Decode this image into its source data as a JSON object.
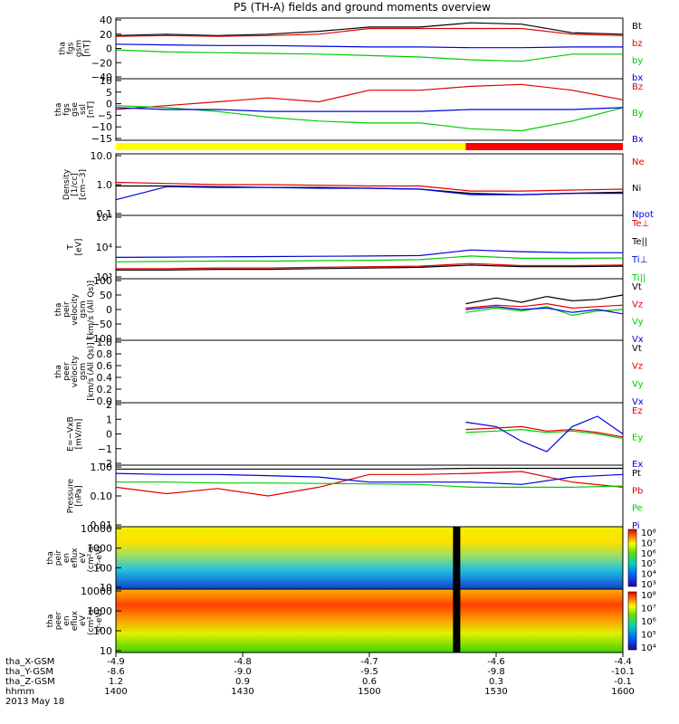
{
  "title": "P5 (TH-A) fields and ground moments overview",
  "colors": {
    "black": "#000000",
    "red": "#e00000",
    "green": "#00cc00",
    "blue": "#0000e0",
    "yellow": "#ffff00",
    "bar_red": "#ff0000"
  },
  "chart_data": [
    {
      "type": "line",
      "panel": "fgs",
      "ylabel": [
        "tha",
        "fgs",
        "gsm",
        "[nT]"
      ],
      "yticks": [
        "40",
        "20",
        "0",
        "−20",
        "−40"
      ],
      "ylim": [
        -40,
        40
      ],
      "series": [
        {
          "name": "Bt",
          "color": "black",
          "x": [
            0,
            0.1,
            0.2,
            0.3,
            0.4,
            0.5,
            0.6,
            0.7,
            0.8,
            0.9,
            1.0
          ],
          "y": [
            18,
            20,
            18,
            20,
            24,
            30,
            30,
            36,
            34,
            22,
            20
          ]
        },
        {
          "name": "bz",
          "color": "red",
          "x": [
            0,
            0.1,
            0.2,
            0.3,
            0.4,
            0.5,
            0.6,
            0.7,
            0.8,
            0.9,
            1.0
          ],
          "y": [
            17,
            18,
            17,
            18,
            20,
            28,
            28,
            28,
            28,
            20,
            18
          ]
        },
        {
          "name": "by",
          "color": "green",
          "x": [
            0,
            0.1,
            0.2,
            0.3,
            0.4,
            0.5,
            0.6,
            0.7,
            0.8,
            0.9,
            1.0
          ],
          "y": [
            -2,
            -5,
            -6,
            -7,
            -8,
            -10,
            -12,
            -16,
            -18,
            -8,
            -8
          ]
        },
        {
          "name": "bx",
          "color": "blue",
          "x": [
            0,
            0.1,
            0.2,
            0.3,
            0.4,
            0.5,
            0.6,
            0.7,
            0.8,
            0.9,
            1.0
          ],
          "y": [
            6,
            5,
            4,
            4,
            3,
            2,
            2,
            1,
            1,
            2,
            2
          ]
        }
      ]
    },
    {
      "type": "line",
      "panel": "fgs-ssl",
      "ylabel": [
        "tha",
        "fgs",
        "gse",
        "ssl",
        "[nT]"
      ],
      "yticks": [
        "10",
        "5",
        "0",
        "−5",
        "−10",
        "−15"
      ],
      "ylim": [
        -17,
        13
      ],
      "series": [
        {
          "name": "Bz",
          "color": "red",
          "x": [
            0,
            0.1,
            0.2,
            0.3,
            0.4,
            0.5,
            0.6,
            0.7,
            0.8,
            0.9,
            1.0
          ],
          "y": [
            -2,
            0,
            2,
            4,
            2,
            8,
            8,
            10,
            11,
            8,
            3
          ]
        },
        {
          "name": "By",
          "color": "green",
          "x": [
            0,
            0.1,
            0.2,
            0.3,
            0.4,
            0.5,
            0.6,
            0.7,
            0.8,
            0.9,
            1.0
          ],
          "y": [
            0,
            -1,
            -3,
            -6,
            -8,
            -9,
            -9,
            -12,
            -13,
            -8,
            -1
          ]
        },
        {
          "name": "Bx",
          "color": "blue",
          "x": [
            0,
            0.1,
            0.2,
            0.3,
            0.4,
            0.5,
            0.6,
            0.7,
            0.8,
            0.9,
            1.0
          ],
          "y": [
            -1,
            -2,
            -2,
            -3,
            -3,
            -3,
            -3,
            -2,
            -2,
            -2,
            -1
          ]
        }
      ]
    },
    {
      "type": "line",
      "panel": "density",
      "log_scale": true,
      "ylabel": [
        "Density",
        "[1/cc]",
        "[cm−3]"
      ],
      "yticks": [
        "10.0",
        "1.0",
        "0.1"
      ],
      "ylim": [
        0.1,
        10
      ],
      "series": [
        {
          "name": "Ne",
          "color": "red",
          "x": [
            0,
            0.1,
            0.2,
            0.3,
            0.4,
            0.5,
            0.6,
            0.7,
            0.8,
            0.9,
            1.0
          ],
          "y": [
            1.2,
            1.1,
            1.0,
            1.0,
            0.95,
            0.9,
            0.9,
            0.6,
            0.6,
            0.65,
            0.7
          ]
        },
        {
          "name": "Ni",
          "color": "black",
          "x": [
            0,
            0.1,
            0.2,
            0.3,
            0.4,
            0.5,
            0.6,
            0.7,
            0.8,
            0.9,
            1.0
          ],
          "y": [
            0.9,
            0.9,
            0.85,
            0.8,
            0.8,
            0.75,
            0.7,
            0.5,
            0.45,
            0.5,
            0.55
          ]
        },
        {
          "name": "Npot",
          "color": "blue",
          "x": [
            0,
            0.1,
            0.2,
            0.3,
            0.4,
            0.5,
            0.6,
            0.7,
            0.8,
            0.9,
            1.0
          ],
          "y": [
            0.3,
            0.85,
            0.8,
            0.8,
            0.75,
            0.75,
            0.7,
            0.45,
            0.45,
            0.5,
            0.5
          ]
        }
      ]
    },
    {
      "type": "line",
      "panel": "temperature",
      "log_scale": true,
      "ylabel": [
        "T",
        "[eV]"
      ],
      "yticks": [
        "10⁵",
        "10⁴",
        "10³"
      ],
      "ylim": [
        1000,
        100000
      ],
      "series": [
        {
          "name": "Te⊥",
          "color": "red",
          "x": [
            0,
            0.1,
            0.2,
            0.3,
            0.4,
            0.5,
            0.6,
            0.7,
            0.8,
            0.9,
            1.0
          ],
          "y": [
            1900,
            1900,
            2000,
            2000,
            2100,
            2200,
            2300,
            2800,
            2400,
            2400,
            2500
          ]
        },
        {
          "name": "Te||",
          "color": "black",
          "x": [
            0,
            0.1,
            0.2,
            0.3,
            0.4,
            0.5,
            0.6,
            0.7,
            0.8,
            0.9,
            1.0
          ],
          "y": [
            1700,
            1700,
            1800,
            1800,
            1900,
            2000,
            2100,
            2500,
            2200,
            2200,
            2300
          ]
        },
        {
          "name": "Ti⊥",
          "color": "blue",
          "x": [
            0,
            0.1,
            0.2,
            0.3,
            0.4,
            0.5,
            0.6,
            0.7,
            0.8,
            0.9,
            1.0
          ],
          "y": [
            4500,
            4600,
            4700,
            4800,
            4900,
            5000,
            5200,
            8000,
            7000,
            6500,
            6500
          ]
        },
        {
          "name": "Ti||",
          "color": "green",
          "x": [
            0,
            0.1,
            0.2,
            0.3,
            0.4,
            0.5,
            0.6,
            0.7,
            0.8,
            0.9,
            1.0
          ],
          "y": [
            3200,
            3300,
            3400,
            3400,
            3500,
            3600,
            3800,
            5000,
            4200,
            4200,
            4300
          ]
        }
      ]
    },
    {
      "type": "line",
      "panel": "peir-velocity",
      "ylabel": [
        "tha",
        "peir",
        "velocity",
        "gsm",
        "[km/s (All Qs)]"
      ],
      "yticks": [
        "100",
        "50",
        "0",
        "−50",
        "−100"
      ],
      "ylim": [
        -100,
        100
      ],
      "series": [
        {
          "name": "Vt",
          "color": "black",
          "x": [
            0.69,
            0.75,
            0.8,
            0.85,
            0.9,
            0.95,
            1.0
          ],
          "y": [
            20,
            40,
            25,
            45,
            30,
            35,
            50
          ]
        },
        {
          "name": "Vz",
          "color": "red",
          "x": [
            0.69,
            0.75,
            0.8,
            0.85,
            0.9,
            0.95,
            1.0
          ],
          "y": [
            5,
            15,
            10,
            20,
            5,
            10,
            15
          ]
        },
        {
          "name": "Vy",
          "color": "green",
          "x": [
            0.69,
            0.75,
            0.8,
            0.85,
            0.9,
            0.95,
            1.0
          ],
          "y": [
            -10,
            5,
            -5,
            10,
            -20,
            -5,
            0
          ]
        },
        {
          "name": "Vx",
          "color": "blue",
          "x": [
            0.69,
            0.75,
            0.8,
            0.85,
            0.9,
            0.95,
            1.0
          ],
          "y": [
            0,
            10,
            0,
            5,
            -10,
            0,
            -15
          ]
        }
      ]
    },
    {
      "type": "line",
      "panel": "peer-velocity",
      "ylabel": [
        "tha",
        "peer",
        "velocity",
        "gsm",
        "[km/s (All Qs)]"
      ],
      "yticks": [
        "1.0",
        "0.8",
        "0.6",
        "0.4",
        "0.2",
        "0.0"
      ],
      "ylim": [
        0,
        1
      ],
      "series": [
        {
          "name": "Vt",
          "color": "black",
          "x": [],
          "y": []
        },
        {
          "name": "Vz",
          "color": "red",
          "x": [],
          "y": []
        },
        {
          "name": "Vy",
          "color": "green",
          "x": [],
          "y": []
        },
        {
          "name": "Vx",
          "color": "blue",
          "x": [],
          "y": []
        }
      ]
    },
    {
      "type": "line",
      "panel": "efield",
      "ylabel": [
        "E=−VxB",
        "[mV/m]"
      ],
      "yticks": [
        "2",
        "1",
        "0",
        "−1",
        "−2"
      ],
      "ylim": [
        -2,
        2
      ],
      "series": [
        {
          "name": "Ez",
          "color": "red",
          "x": [
            0.69,
            0.75,
            0.8,
            0.85,
            0.9,
            0.95,
            1.0
          ],
          "y": [
            0.3,
            0.4,
            0.5,
            0.2,
            0.3,
            0.1,
            -0.2
          ]
        },
        {
          "name": "Ey",
          "color": "green",
          "x": [
            0.69,
            0.75,
            0.8,
            0.85,
            0.9,
            0.95,
            1.0
          ],
          "y": [
            0.1,
            0.2,
            0.3,
            0.1,
            0.2,
            0.0,
            -0.3
          ]
        },
        {
          "name": "Ex",
          "color": "blue",
          "x": [
            0.69,
            0.75,
            0.8,
            0.85,
            0.9,
            0.95,
            1.0
          ],
          "y": [
            0.8,
            0.5,
            -0.5,
            -1.2,
            0.5,
            1.2,
            0.0
          ]
        }
      ]
    },
    {
      "type": "line",
      "panel": "pressure",
      "log_scale": true,
      "ylabel": [
        "Pressure",
        "[nPa]"
      ],
      "yticks": [
        "1.00",
        "0.10",
        "0.01"
      ],
      "ylim": [
        0.01,
        1
      ],
      "series": [
        {
          "name": "Pt",
          "color": "black",
          "x": [
            0,
            0.1,
            0.2,
            0.3,
            0.4,
            0.5,
            0.6,
            0.7,
            0.8,
            0.9,
            1.0
          ],
          "y": [
            0.85,
            0.85,
            0.85,
            0.85,
            0.85,
            0.85,
            0.85,
            0.9,
            0.9,
            0.9,
            0.9
          ]
        },
        {
          "name": "Pb",
          "color": "red",
          "x": [
            0,
            0.1,
            0.2,
            0.3,
            0.4,
            0.5,
            0.6,
            0.7,
            0.8,
            0.9,
            1.0
          ],
          "y": [
            0.2,
            0.12,
            0.18,
            0.1,
            0.2,
            0.55,
            0.55,
            0.6,
            0.7,
            0.3,
            0.2
          ]
        },
        {
          "name": "Pe",
          "color": "green",
          "x": [
            0,
            0.1,
            0.2,
            0.3,
            0.4,
            0.5,
            0.6,
            0.7,
            0.8,
            0.9,
            1.0
          ],
          "y": [
            0.3,
            0.3,
            0.28,
            0.28,
            0.27,
            0.26,
            0.25,
            0.2,
            0.2,
            0.2,
            0.22
          ]
        },
        {
          "name": "Pi",
          "color": "blue",
          "x": [
            0,
            0.1,
            0.2,
            0.3,
            0.4,
            0.5,
            0.6,
            0.7,
            0.8,
            0.9,
            1.0
          ],
          "y": [
            0.6,
            0.55,
            0.55,
            0.5,
            0.45,
            0.3,
            0.3,
            0.3,
            0.25,
            0.45,
            0.55
          ]
        }
      ]
    },
    {
      "type": "heatmap",
      "panel": "peir-spectrogram",
      "ylabel": [
        "tha",
        "peir",
        "en",
        "eflux",
        "eV",
        "(cm²-s-",
        "sr-eV)"
      ],
      "yticks": [
        "10000",
        "1000",
        "100",
        "10"
      ],
      "colorbar_ticks": [
        "10⁸",
        "10⁷",
        "10⁶",
        "10⁵",
        "10⁴",
        "10³"
      ]
    },
    {
      "type": "heatmap",
      "panel": "peer-spectrogram",
      "ylabel": [
        "tha",
        "peer",
        "en",
        "eflux",
        "eV",
        "(cm²-s-",
        "sr-eV)"
      ],
      "yticks": [
        "10000",
        "1000",
        "100",
        "10"
      ],
      "colorbar_ticks": [
        "10⁸",
        "10⁷",
        "10⁶",
        "10⁵",
        "10⁴"
      ]
    }
  ],
  "status_bar": {
    "colors": [
      "yellow",
      "bar_red"
    ],
    "switch_at": 0.69
  },
  "xaxis": {
    "rows": [
      {
        "label": "tha_X-GSM",
        "values": [
          "-4.9",
          "-4.8",
          "-4.7",
          "-4.6",
          "-4.4"
        ]
      },
      {
        "label": "tha_Y-GSM",
        "values": [
          "-8.6",
          "-9.0",
          "-9.5",
          "-9.8",
          "-10.1"
        ]
      },
      {
        "label": "tha_Z-GSM",
        "values": [
          "1.2",
          "0.9",
          "0.6",
          "0.3",
          "-0.1"
        ]
      },
      {
        "label": "hhmm",
        "values": [
          "1400",
          "1430",
          "1500",
          "1530",
          "1600"
        ]
      }
    ],
    "date": "2013 May 18"
  }
}
